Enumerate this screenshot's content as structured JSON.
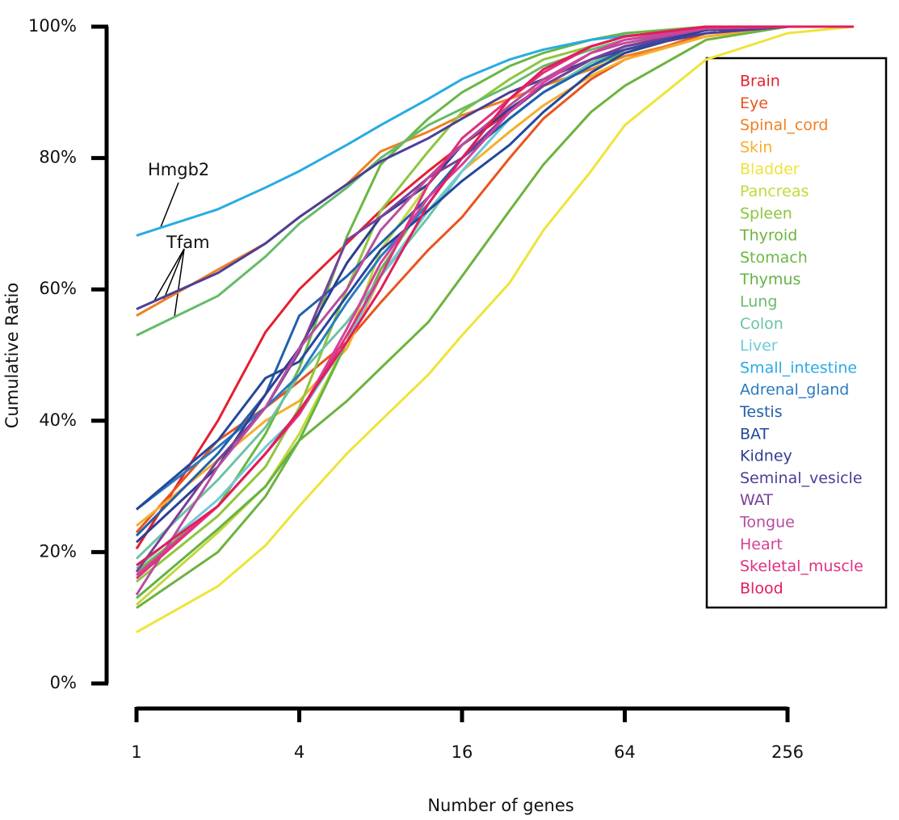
{
  "chart_data": {
    "type": "line",
    "x_label": "Number of genes",
    "y_label": "Cumulative Ratio",
    "log_x": true,
    "x": [
      1,
      2,
      3,
      4,
      6,
      8,
      12,
      16,
      24,
      32,
      48,
      64,
      128,
      256,
      450
    ],
    "xlim": [
      1,
      450
    ],
    "xticks": [
      1,
      4,
      16,
      64,
      256
    ],
    "ylim": [
      0,
      100
    ],
    "yticks": [
      {
        "value": 0,
        "label": "0%"
      },
      {
        "value": 20,
        "label": "20%"
      },
      {
        "value": 40,
        "label": "40%"
      },
      {
        "value": 60,
        "label": "60%"
      },
      {
        "value": 80,
        "label": "80%"
      },
      {
        "value": 100,
        "label": "100%"
      }
    ],
    "legend": "top-right",
    "annotations": [
      {
        "text": "Hmgb2"
      },
      {
        "text": "Tfam"
      }
    ],
    "series": [
      {
        "name": "Brain",
        "color": "#e41e2f",
        "values": [
          20.5,
          40,
          53.5,
          60,
          67,
          72,
          78,
          82,
          87,
          91,
          95,
          97,
          99.5,
          100,
          100
        ]
      },
      {
        "name": "Eye",
        "color": "#e8541c",
        "values": [
          23,
          37,
          42,
          46,
          52,
          58,
          66,
          71,
          80,
          86,
          92,
          95,
          99,
          100,
          100
        ]
      },
      {
        "name": "Spinal_cord",
        "color": "#f07f22",
        "values": [
          56,
          63,
          67,
          71,
          76,
          81,
          84,
          86.5,
          89,
          91,
          93.5,
          95.5,
          98.5,
          100,
          100
        ]
      },
      {
        "name": "Skin",
        "color": "#f6ae2d",
        "values": [
          24,
          34,
          40,
          43,
          51,
          62,
          72,
          78,
          84,
          88,
          92.5,
          95,
          98.5,
          100,
          100
        ]
      },
      {
        "name": "Bladder",
        "color": "#eee43a",
        "values": [
          7.8,
          14.8,
          21,
          27,
          35,
          40,
          47,
          53,
          61,
          69,
          78,
          85,
          95,
          99,
          100
        ]
      },
      {
        "name": "Pancreas",
        "color": "#c5d73a",
        "values": [
          12,
          23,
          30,
          38,
          52,
          66,
          76,
          82,
          88,
          92,
          95,
          97,
          99.5,
          100,
          100
        ]
      },
      {
        "name": "Spleen",
        "color": "#8dc63f",
        "values": [
          15.5,
          25.5,
          33,
          42,
          60,
          72,
          81,
          87,
          92,
          95,
          97,
          98.5,
          99.7,
          100,
          100
        ]
      },
      {
        "name": "Thyroid",
        "color": "#6db33f",
        "values": [
          11.5,
          20,
          28.5,
          37,
          43,
          48,
          55,
          62,
          72,
          79,
          87,
          91,
          98,
          100,
          100
        ]
      },
      {
        "name": "Stomach",
        "color": "#6ab744",
        "values": [
          17,
          27,
          38,
          48,
          68,
          79,
          86,
          90,
          94,
          96,
          98,
          99,
          100,
          100,
          100
        ]
      },
      {
        "name": "Thymus",
        "color": "#63b346",
        "values": [
          13,
          23.5,
          30,
          37,
          52,
          63,
          74,
          80,
          86,
          90,
          94,
          96,
          99.5,
          100,
          100
        ]
      },
      {
        "name": "Lung",
        "color": "#66bb6a",
        "values": [
          53,
          59,
          65,
          70,
          75.5,
          80,
          85,
          87.5,
          91,
          94,
          96.5,
          98,
          99.5,
          100,
          100
        ]
      },
      {
        "name": "Colon",
        "color": "#6cc3a4",
        "values": [
          19,
          31,
          39,
          47,
          55,
          62,
          71,
          78,
          86,
          90,
          94.5,
          96.5,
          99.5,
          100,
          100
        ]
      },
      {
        "name": "Liver",
        "color": "#6dcbd8",
        "values": [
          17.5,
          28,
          36,
          41,
          52,
          62,
          72,
          78,
          86,
          90,
          94,
          96.5,
          99.5,
          100,
          100
        ]
      },
      {
        "name": "Small_intestine",
        "color": "#29abe2",
        "values": [
          68.2,
          72.2,
          75.5,
          78,
          82,
          85,
          89,
          92,
          95,
          96.5,
          98,
          98.6,
          99.6,
          100,
          100
        ]
      },
      {
        "name": "Adrenal_gland",
        "color": "#2b7bc1",
        "values": [
          26.5,
          36,
          42,
          47,
          58,
          65,
          73,
          80,
          87,
          91,
          95,
          97,
          99.5,
          100,
          100
        ]
      },
      {
        "name": "Testis",
        "color": "#2160ad",
        "values": [
          22.5,
          35,
          44,
          56,
          62,
          67,
          74,
          80,
          86,
          90,
          94,
          96.5,
          99.5,
          100,
          100
        ]
      },
      {
        "name": "BAT",
        "color": "#24489b",
        "values": [
          26.5,
          37,
          46.5,
          49,
          59,
          66,
          72,
          76.5,
          82,
          87,
          93,
          96,
          99.5,
          100,
          100
        ]
      },
      {
        "name": "Kidney",
        "color": "#2e3e92",
        "values": [
          21.5,
          33,
          44,
          51,
          64,
          71,
          76,
          82,
          87.5,
          91,
          95,
          97,
          99.5,
          100,
          100
        ]
      },
      {
        "name": "Seminal_vesicle",
        "color": "#4b3f98",
        "values": [
          57,
          62.5,
          67,
          71,
          76,
          79.5,
          83,
          86,
          90,
          92,
          95,
          96.5,
          99,
          100,
          100
        ]
      },
      {
        "name": "WAT",
        "color": "#7b3f98",
        "values": [
          17,
          34,
          42,
          50.5,
          67.5,
          71,
          77,
          80,
          87,
          91,
          95,
          97,
          99.7,
          100,
          100
        ]
      },
      {
        "name": "Tongue",
        "color": "#b84d9e",
        "values": [
          13.5,
          33,
          42,
          51,
          60,
          69,
          77,
          82,
          88,
          92,
          96,
          97.5,
          99.7,
          100,
          100
        ]
      },
      {
        "name": "Heart",
        "color": "#d7409b",
        "values": [
          16.5,
          27,
          35,
          41,
          54,
          64,
          74,
          79,
          87,
          91.5,
          96,
          98,
          99.8,
          100,
          100
        ]
      },
      {
        "name": "Skeletal_muscle",
        "color": "#e0307f",
        "values": [
          16,
          27,
          35,
          41,
          53,
          62,
          76,
          83,
          89,
          93,
          97,
          98.5,
          100,
          100,
          100
        ]
      },
      {
        "name": "Blood",
        "color": "#e21d5a",
        "values": [
          18,
          27,
          35,
          41.5,
          52,
          60,
          73,
          80,
          89,
          93.5,
          97,
          98.5,
          100,
          100,
          100
        ]
      }
    ]
  }
}
